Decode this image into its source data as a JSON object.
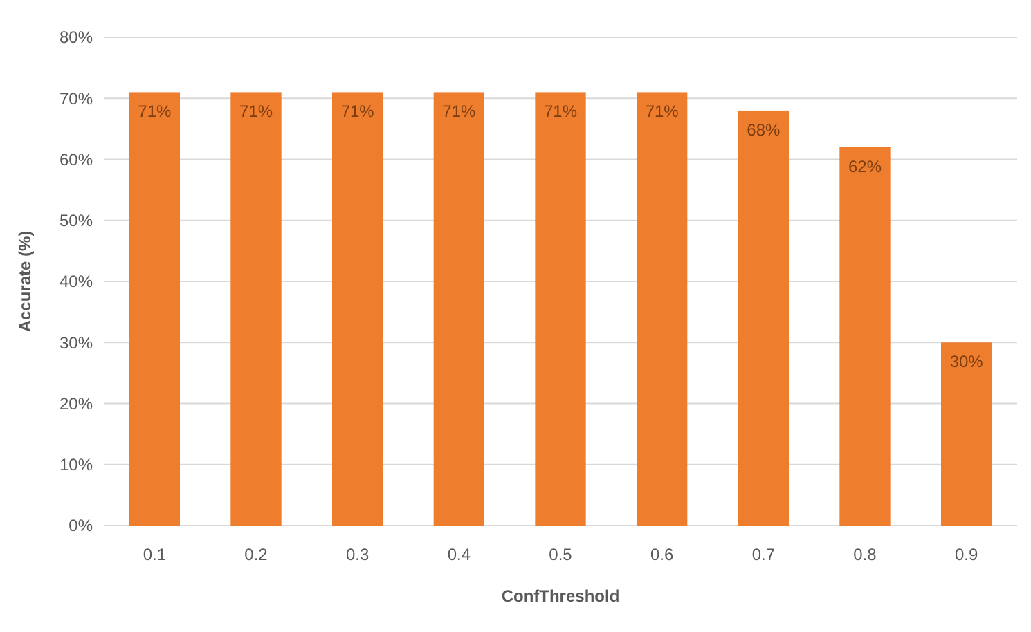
{
  "chart_data": {
    "type": "bar",
    "xlabel": "ConfThreshold",
    "ylabel": "Accurate (%)",
    "categories": [
      "0.1",
      "0.2",
      "0.3",
      "0.4",
      "0.5",
      "0.6",
      "0.7",
      "0.8",
      "0.9"
    ],
    "values": [
      71,
      71,
      71,
      71,
      71,
      71,
      68,
      62,
      30
    ],
    "value_labels": [
      "71%",
      "71%",
      "71%",
      "71%",
      "71%",
      "71%",
      "68%",
      "62%",
      "30%"
    ],
    "color": "#ef7d2e",
    "ylim": [
      0,
      80
    ],
    "yticks": [
      {
        "value": 0,
        "label": "0%"
      },
      {
        "value": 10,
        "label": "10%"
      },
      {
        "value": 20,
        "label": "20%"
      },
      {
        "value": 30,
        "label": "30%"
      },
      {
        "value": 40,
        "label": "40%"
      },
      {
        "value": 50,
        "label": "50%"
      },
      {
        "value": 60,
        "label": "60%"
      },
      {
        "value": 70,
        "label": "70%"
      },
      {
        "value": 80,
        "label": "80%"
      }
    ],
    "grid": "y"
  }
}
